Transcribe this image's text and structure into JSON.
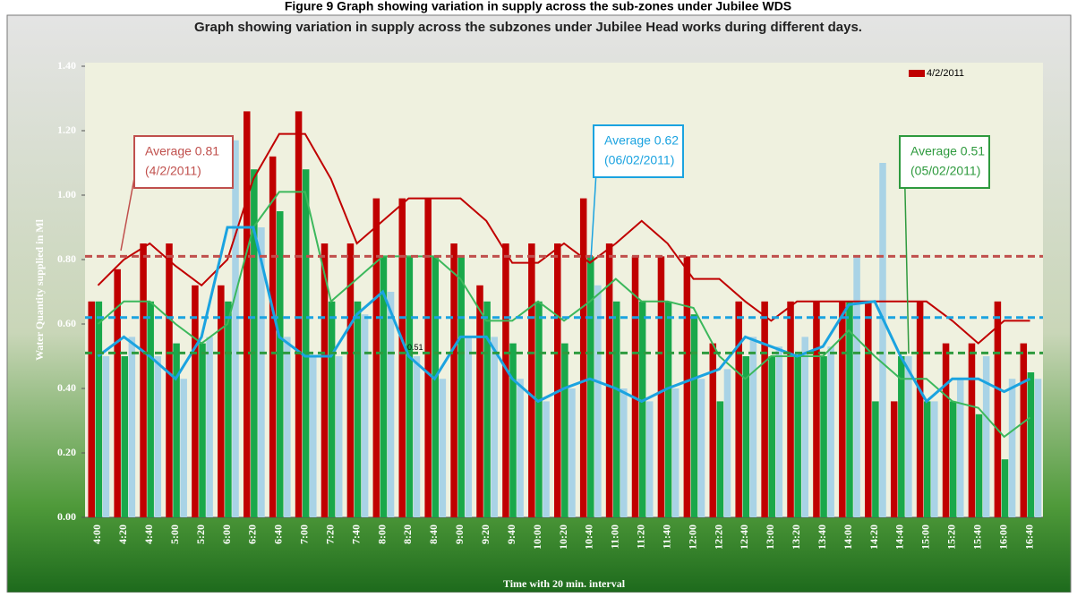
{
  "chart_data": {
    "type": "bar",
    "caption": "Figure 9 Graph showing variation in supply across the sub-zones under Jubilee WDS",
    "title": "Graph showing variation in supply across the subzones under Jubilee Head works during different days.",
    "ylabel": "Water Quantity supplied in Ml",
    "xlabel": "Time with 20 min. interval",
    "categories": [
      "4:00",
      "4:20",
      "4:40",
      "5:00",
      "5:20",
      "6:00",
      "6:20",
      "6:40",
      "7:00",
      "7:20",
      "7:40",
      "8:00",
      "8:20",
      "8:40",
      "9:00",
      "9:20",
      "9:40",
      "10:00",
      "10:20",
      "10:40",
      "11:00",
      "11:20",
      "11:40",
      "12:00",
      "12:20",
      "12:40",
      "13:00",
      "13:20",
      "13:40",
      "14:00",
      "14:20",
      "14:40",
      "15:00",
      "15:20",
      "15:40",
      "16:00",
      "16:40"
    ],
    "series": [
      {
        "name": "4/2/2011",
        "color": "#c00000",
        "values": [
          0.67,
          0.77,
          0.85,
          0.85,
          0.72,
          0.72,
          1.26,
          1.12,
          1.26,
          0.85,
          0.85,
          0.99,
          0.99,
          0.99,
          0.85,
          0.72,
          0.85,
          0.85,
          0.85,
          0.99,
          0.85,
          0.81,
          0.81,
          0.81,
          0.54,
          0.67,
          0.67,
          0.67,
          0.67,
          0.67,
          0.67,
          0.36,
          0.67,
          0.54,
          0.54,
          0.67,
          0.54
        ]
      },
      {
        "color": "#19a84a",
        "values": [
          0.67,
          0.5,
          0.67,
          0.54,
          0.54,
          0.67,
          1.08,
          0.95,
          1.08,
          0.67,
          0.67,
          0.81,
          0.81,
          0.81,
          0.81,
          0.67,
          0.54,
          0.67,
          0.54,
          0.81,
          0.67,
          0.67,
          0.67,
          0.63,
          0.36,
          0.5,
          0.5,
          0.5,
          0.5,
          0.67,
          0.36,
          0.5,
          0.36,
          0.36,
          0.32,
          0.18,
          0.45
        ]
      },
      {
        "color": "#a9d3e6",
        "values": [
          0.5,
          0.56,
          0.5,
          0.43,
          0.56,
          1.17,
          0.9,
          0.56,
          0.5,
          0.5,
          0.63,
          0.7,
          0.5,
          0.43,
          0.56,
          0.56,
          0.43,
          0.36,
          0.4,
          0.72,
          0.4,
          0.36,
          0.4,
          0.43,
          0.46,
          0.56,
          0.53,
          0.56,
          0.53,
          0.81,
          1.1,
          0.5,
          0.36,
          0.43,
          0.5,
          0.43,
          0.43
        ]
      }
    ],
    "lines": [
      {
        "color": "#c00000",
        "values": [
          0.72,
          0.8,
          0.85,
          0.78,
          0.72,
          0.8,
          1.05,
          1.19,
          1.19,
          1.05,
          0.85,
          0.92,
          0.99,
          0.99,
          0.99,
          0.92,
          0.79,
          0.79,
          0.85,
          0.79,
          0.85,
          0.92,
          0.85,
          0.74,
          0.74,
          0.67,
          0.61,
          0.67,
          0.67,
          0.67,
          0.67,
          0.67,
          0.67,
          0.61,
          0.54,
          0.61,
          0.61
        ]
      },
      {
        "color": "#3cb85c",
        "values": [
          0.6,
          0.67,
          0.67,
          0.6,
          0.54,
          0.6,
          0.9,
          1.01,
          1.01,
          0.67,
          0.74,
          0.81,
          0.81,
          0.81,
          0.74,
          0.61,
          0.61,
          0.67,
          0.61,
          0.67,
          0.74,
          0.67,
          0.67,
          0.65,
          0.5,
          0.43,
          0.5,
          0.5,
          0.5,
          0.58,
          0.5,
          0.43,
          0.43,
          0.36,
          0.34,
          0.25,
          0.31
        ]
      },
      {
        "color": "#1ba3e0",
        "values": [
          0.5,
          0.56,
          0.5,
          0.43,
          0.56,
          0.9,
          0.9,
          0.56,
          0.5,
          0.5,
          0.63,
          0.7,
          0.5,
          0.43,
          0.56,
          0.56,
          0.43,
          0.36,
          0.4,
          0.43,
          0.4,
          0.36,
          0.4,
          0.43,
          0.46,
          0.56,
          0.53,
          0.5,
          0.53,
          0.66,
          0.67,
          0.5,
          0.36,
          0.43,
          0.43,
          0.39,
          0.43
        ]
      }
    ],
    "averages": [
      {
        "value": 0.81,
        "color": "#c0504d",
        "text": [
          "Average 0.81",
          "(4/2/2011)"
        ]
      },
      {
        "value": 0.62,
        "color": "#1ba3e0",
        "text": [
          "Average 0.62",
          "(06/02/2011)"
        ]
      },
      {
        "value": 0.51,
        "color": "#2e9a3e",
        "text": [
          "Average 0.51",
          "(05/02/2011)"
        ],
        "value_label": "0.51"
      }
    ],
    "ylim": [
      0,
      1.4
    ],
    "yticks": [
      {
        "value": 0,
        "label": "0.00"
      },
      {
        "value": 0.2,
        "label": "0.20"
      },
      {
        "value": 0.4,
        "label": "0.40"
      },
      {
        "value": 0.6,
        "label": "0.60"
      },
      {
        "value": 0.8,
        "label": "0.80"
      },
      {
        "value": 1,
        "label": "1.00"
      },
      {
        "value": 1.2,
        "label": "1.20"
      },
      {
        "value": 1.4,
        "label": "1.40"
      }
    ],
    "legend": "upper right"
  }
}
